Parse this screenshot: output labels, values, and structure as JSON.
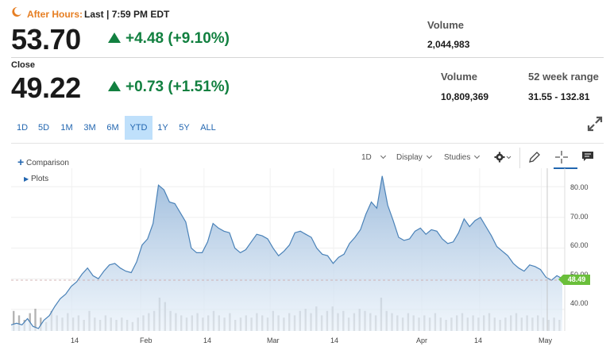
{
  "after_hours": {
    "label": "After Hours:",
    "last": "Last | 7:59 PM EDT",
    "price": "53.70",
    "change": "+4.48 (+9.10%)",
    "volume_label": "Volume",
    "volume": "2,044,983"
  },
  "close": {
    "label": "Close",
    "price": "49.22",
    "change": "+0.73 (+1.51%)",
    "volume_label": "Volume",
    "volume": "10,809,369",
    "range_label": "52 week range",
    "range": "31.55 - 132.81"
  },
  "ranges": [
    "1D",
    "5D",
    "1M",
    "3M",
    "6M",
    "YTD",
    "1Y",
    "5Y",
    "ALL"
  ],
  "active_range": "YTD",
  "toolbar": {
    "comparison": "Comparison",
    "plots": "Plots",
    "interval": "1D",
    "display": "Display",
    "studies": "Studies"
  },
  "colors": {
    "up": "#128040",
    "accent": "#e67e22",
    "line": "#4a82b8",
    "price_tag": "#6abf3a",
    "link": "#2266b0"
  },
  "chart_data": {
    "type": "area",
    "title": "",
    "xlabel": "",
    "ylabel": "",
    "ylim": [
      33,
      86
    ],
    "y_ticks": [
      "80.00",
      "70.00",
      "60.00",
      "50.00",
      "40.00"
    ],
    "x_ticks": [
      "14",
      "Feb",
      "14",
      "Mar",
      "14",
      "Apr",
      "14",
      "May"
    ],
    "last_price_label": "48.49",
    "series": [
      {
        "values": [
          35.0,
          35.5,
          35.0,
          37.0,
          34.5,
          33.8,
          36.5,
          38.0,
          41.0,
          43.5,
          45.0,
          47.5,
          49.0,
          51.5,
          53.5,
          51.0,
          50.0,
          52.5,
          54.5,
          55.0,
          53.5,
          52.5,
          52.0,
          55.5,
          61.0,
          63.0,
          68.0,
          80.5,
          79.0,
          75.0,
          74.5,
          71.5,
          68.5,
          60.0,
          58.5,
          58.5,
          62.0,
          68.0,
          66.5,
          65.5,
          65.0,
          60.0,
          58.5,
          59.5,
          62.0,
          64.5,
          64.0,
          63.0,
          60.0,
          57.5,
          59.0,
          61.0,
          65.0,
          65.5,
          64.5,
          63.5,
          60.0,
          58.0,
          57.5,
          55.0,
          57.0,
          58.0,
          61.5,
          63.5,
          66.0,
          71.0,
          75.0,
          73.0,
          83.5,
          74.0,
          69.0,
          63.5,
          62.5,
          63.0,
          65.5,
          66.5,
          64.5,
          66.0,
          65.5,
          63.0,
          61.5,
          62.0,
          65.0,
          69.5,
          67.0,
          69.0,
          70.0,
          67.0,
          64.0,
          60.5,
          59.0,
          57.5,
          55.0,
          53.5,
          52.5,
          54.5,
          54.0,
          53.0,
          50.5,
          49.5,
          51.0,
          50.0
        ]
      }
    ],
    "volume": [
      9,
      7,
      5,
      8,
      10,
      6,
      4,
      9,
      7,
      6,
      8,
      6,
      7,
      5,
      9,
      6,
      5,
      7,
      6,
      5,
      6,
      5,
      4,
      6,
      7,
      8,
      9,
      15,
      13,
      9,
      8,
      7,
      6,
      7,
      8,
      6,
      7,
      9,
      7,
      6,
      8,
      5,
      6,
      7,
      6,
      8,
      7,
      6,
      9,
      7,
      6,
      8,
      7,
      9,
      10,
      8,
      11,
      7,
      9,
      11,
      8,
      9,
      6,
      8,
      10,
      9,
      8,
      7,
      15,
      9,
      8,
      7,
      6,
      8,
      7,
      6,
      7,
      6,
      8,
      6,
      5,
      6,
      7,
      8,
      6,
      7,
      6,
      7,
      8,
      6,
      5,
      6,
      7,
      8,
      6,
      7,
      6,
      7,
      6,
      5,
      6,
      5
    ]
  }
}
